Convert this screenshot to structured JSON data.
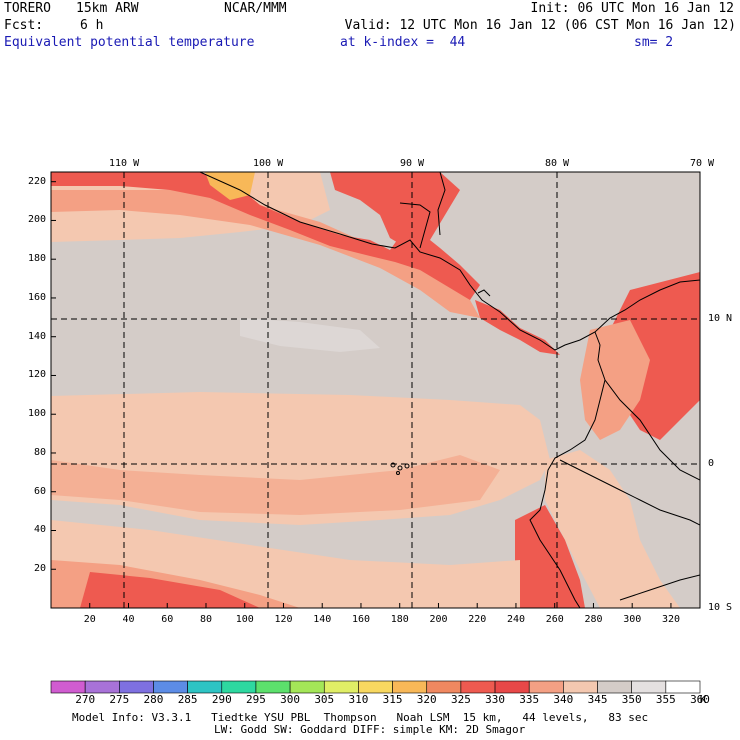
{
  "header": {
    "model_name": "TORERO",
    "resolution": "15km ARW",
    "organization": "NCAR/MMM",
    "init": "Init: 06 UTC Mon 16 Jan 12",
    "forecast_label": "Fcst:",
    "forecast_hours": "6 h",
    "valid": "Valid: 12 UTC Mon 16 Jan 12 (06 CST Mon 16 Jan 12)",
    "field": "Equivalent potential temperature",
    "level": "at k-index =  44",
    "smoothing": "sm= 2"
  },
  "map": {
    "lon_labels": [
      "110 W",
      "100 W",
      "90 W",
      "80 W",
      "70 W"
    ],
    "lat_labels": [
      "10 N",
      "0",
      "10 S"
    ],
    "x_ticks": [
      "20",
      "40",
      "60",
      "80",
      "100",
      "120",
      "140",
      "160",
      "180",
      "200",
      "220",
      "240",
      "260",
      "280",
      "300",
      "320"
    ],
    "y_ticks": [
      "20",
      "40",
      "60",
      "80",
      "100",
      "120",
      "140",
      "160",
      "180",
      "200",
      "220"
    ]
  },
  "colorbar": {
    "unit": "K",
    "labels": [
      "270",
      "275",
      "280",
      "285",
      "290",
      "295",
      "300",
      "305",
      "310",
      "315",
      "320",
      "325",
      "330",
      "335",
      "340",
      "345",
      "350",
      "355",
      "360"
    ],
    "colors": [
      "#d05cd0",
      "#a872d8",
      "#7e70e0",
      "#5c8ce6",
      "#2ec4c4",
      "#2ed8a0",
      "#5ce06c",
      "#a4e658",
      "#e0ee66",
      "#f8d860",
      "#f8b858",
      "#f08860",
      "#ee5a50",
      "#e84848",
      "#f4a084",
      "#f4c8b0",
      "#d4ccc8",
      "#e4e0e0",
      "#ffffff"
    ]
  },
  "footer": {
    "line1": "Model Info: V3.3.1   Tiedtke YSU PBL  Thompson   Noah LSM  15 km,   44 levels,   83 sec",
    "line2": "LW: Godd SW: Goddard DIFF: simple KM: 2D Smagor"
  }
}
